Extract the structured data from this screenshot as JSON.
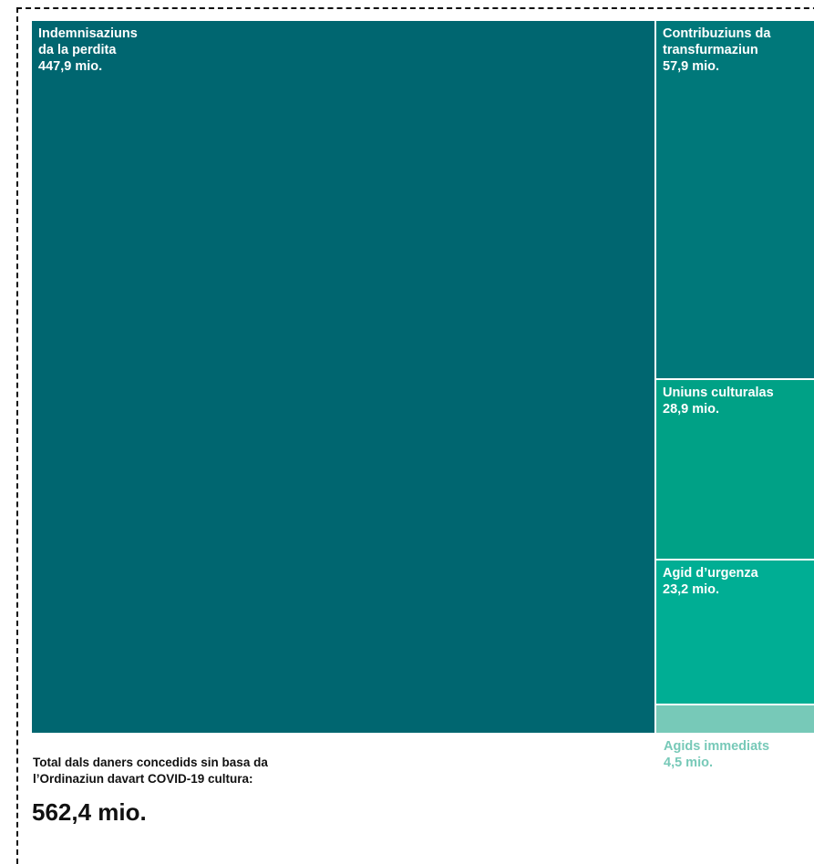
{
  "chart_data": {
    "type": "treemap",
    "unit": "mio.",
    "items": [
      {
        "label": "Indemnisaziuns\nda la perdita",
        "value": 447.9,
        "value_text": "447,9 mio.",
        "color": "#006670"
      },
      {
        "label": "Contribuziuns da\ntransfurmaziun",
        "value": 57.9,
        "value_text": "57,9 mio.",
        "color": "#00787a"
      },
      {
        "label": "Uniuns culturalas",
        "value": 28.9,
        "value_text": "28,9 mio.",
        "color": "#00a186"
      },
      {
        "label": "Agid d’urgenza",
        "value": 23.2,
        "value_text": "23,2 mio.",
        "color": "#00ae94"
      },
      {
        "label": "Agids immediats",
        "value": 4.5,
        "value_text": "4,5 mio.",
        "color": "#77c9b8"
      }
    ],
    "total_caption": "Total dals daners concedids sin basa da\nl’Ordinaziun davart COVID-19 cultura:",
    "total_value": "562,4 mio."
  }
}
